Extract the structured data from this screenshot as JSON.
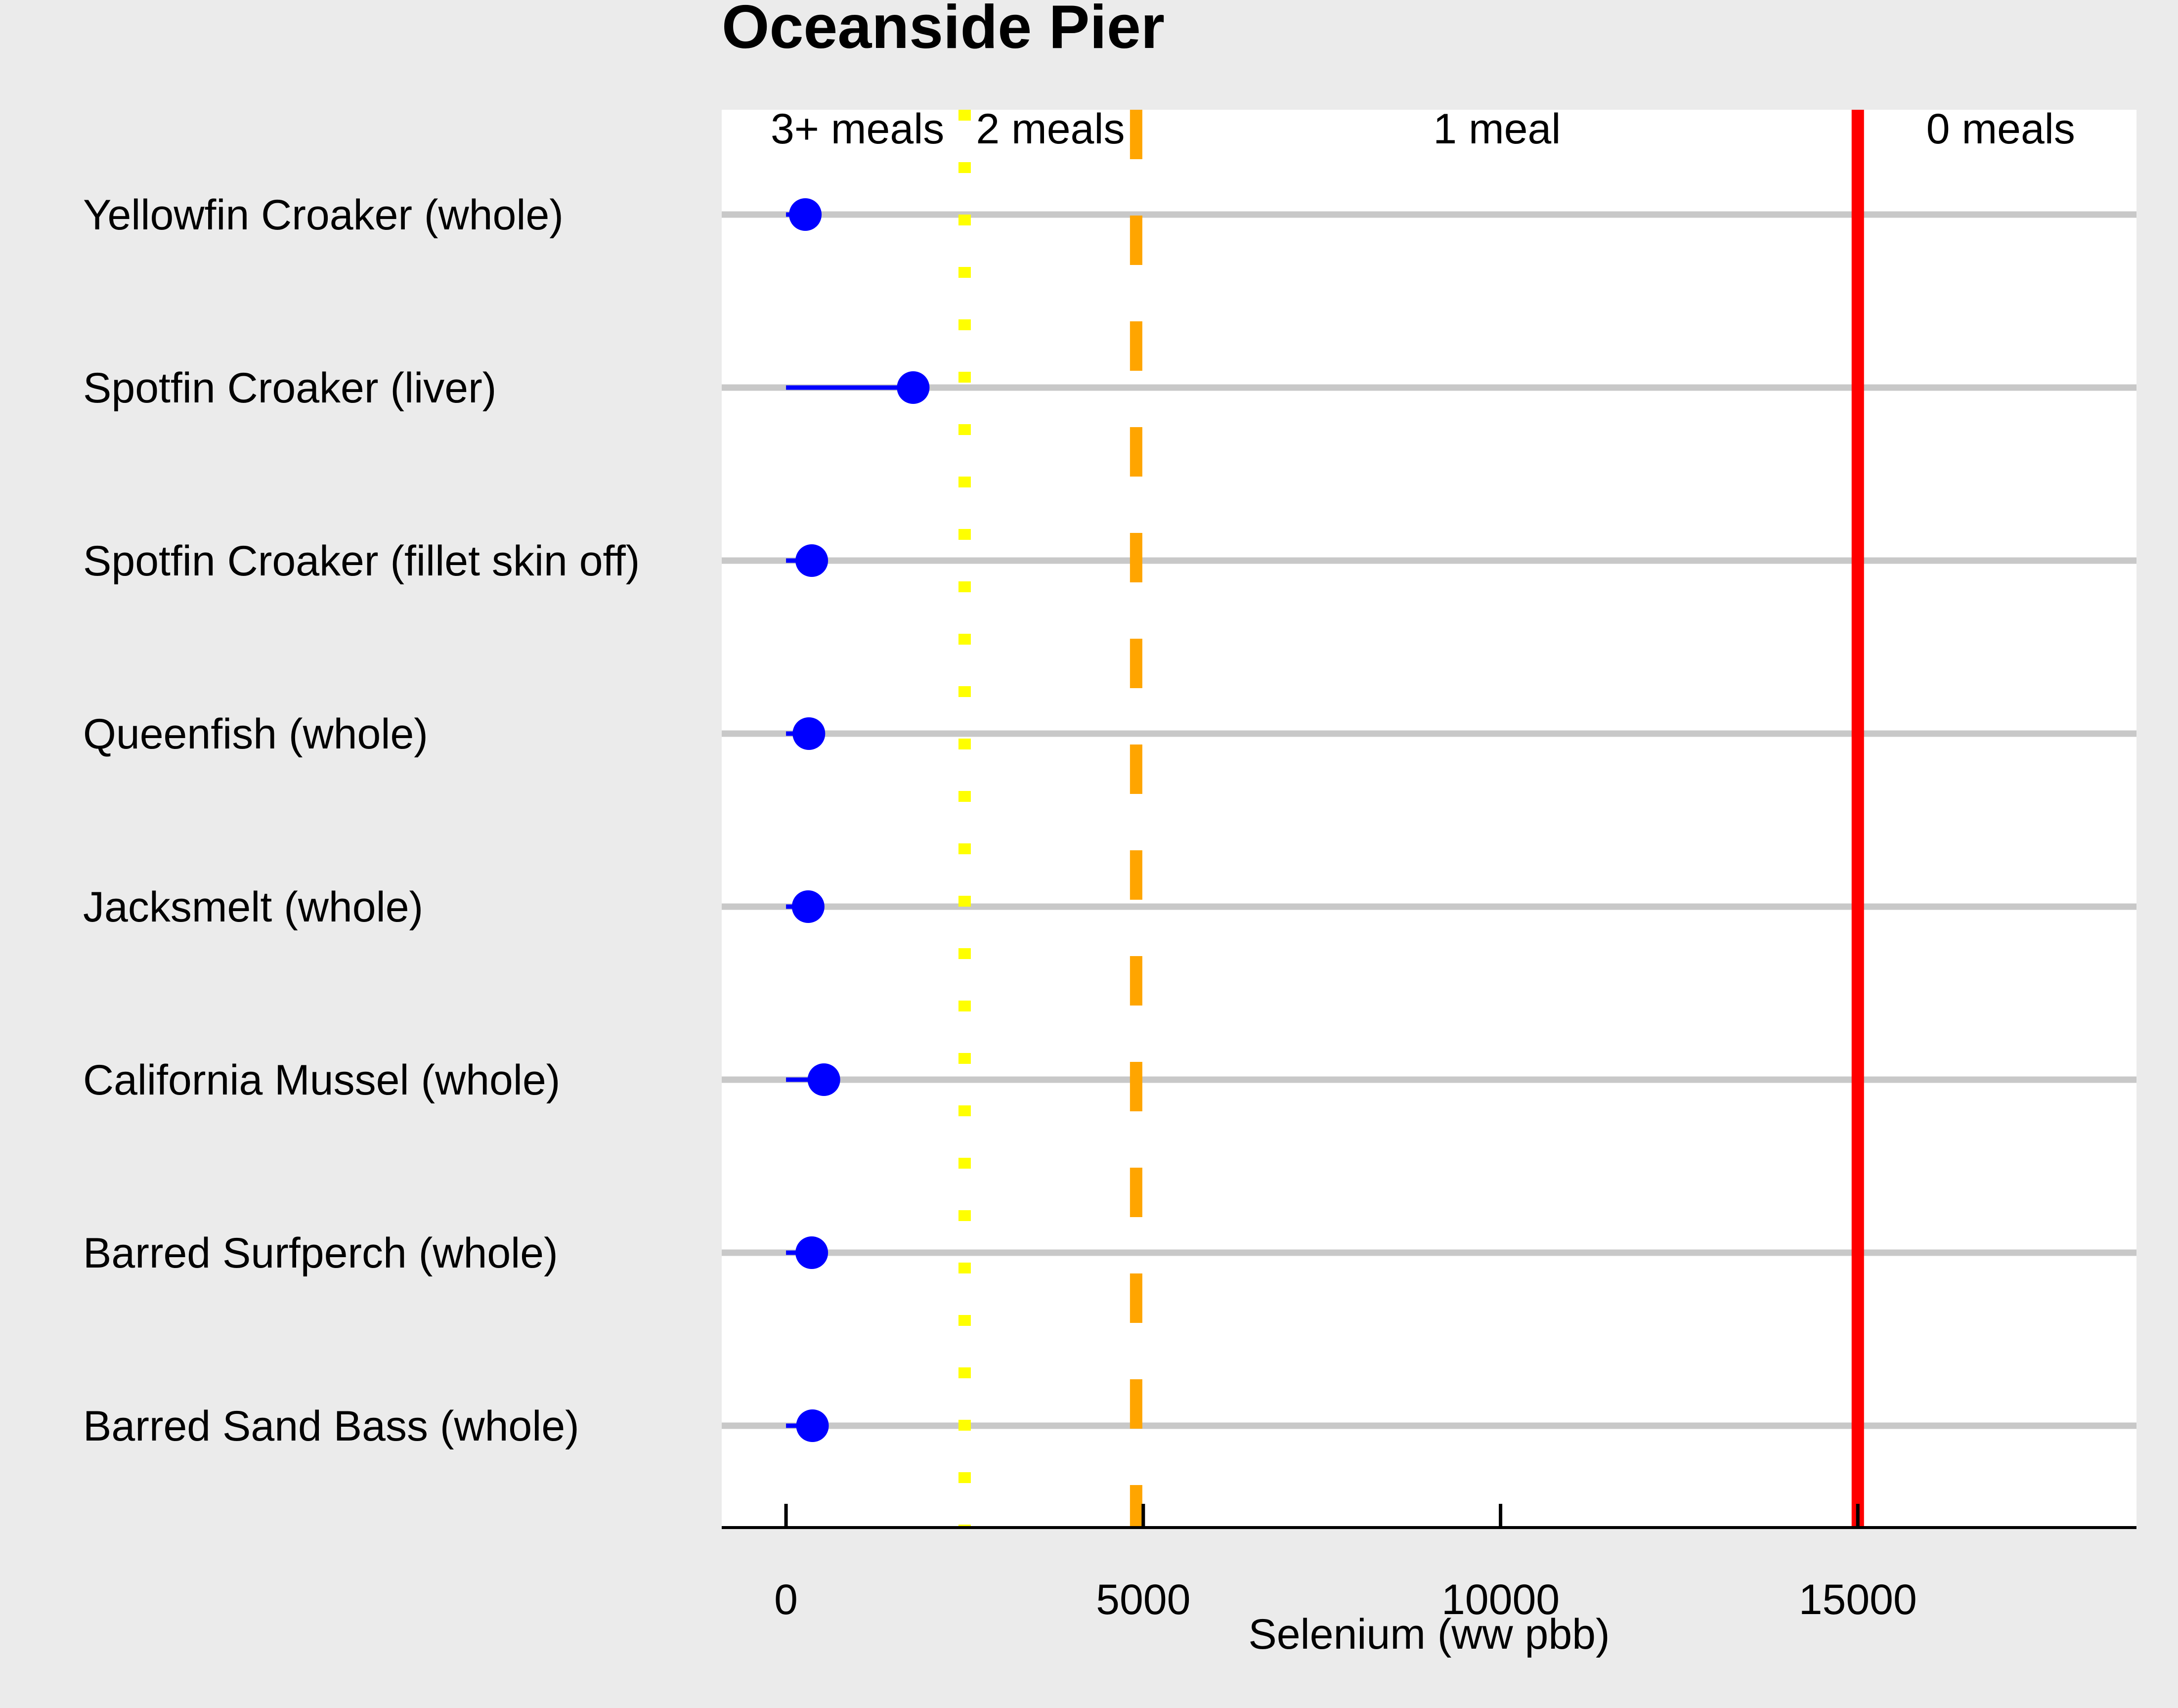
{
  "chart_data": {
    "type": "scatter",
    "title": "Oceanside Pier",
    "xlabel": "Selenium (ww pbb)",
    "ylabel": "",
    "xlim": [
      -900,
      18900
    ],
    "x_ticks": [
      0,
      5000,
      10000,
      15000
    ],
    "x_tick_labels": [
      "0",
      "5000",
      "10000",
      "15000"
    ],
    "grid": "horizontal",
    "categories": [
      "Yellowfin Croaker (whole)",
      "Spotfin Croaker (liver)",
      "Spotfin Croaker (fillet skin off)",
      "Queenfish (whole)",
      "Jacksmelt (whole)",
      "California Mussel (whole)",
      "Barred Surfperch (whole)",
      "Barred Sand Bass (whole)"
    ],
    "series": [
      {
        "values": [
          270,
          1780,
          360,
          320,
          310,
          530,
          360,
          370
        ],
        "range_low": [
          0,
          0,
          0,
          0,
          0,
          0,
          0,
          0
        ],
        "color": "#0000ff"
      }
    ],
    "thresholds": [
      {
        "value": 2500,
        "color": "#ffff00",
        "style": "dotted"
      },
      {
        "value": 4900,
        "color": "#ffa500",
        "style": "dashed"
      },
      {
        "value": 15000,
        "color": "#ff0000",
        "style": "solid"
      }
    ],
    "zone_labels": [
      {
        "text": "3+ meals",
        "center": 1000
      },
      {
        "text": "2 meals",
        "center": 3700
      },
      {
        "text": "1 meal",
        "center": 9950
      },
      {
        "text": "0 meals",
        "center": 17000
      }
    ],
    "colors": {
      "background": "#ebebeb",
      "panel": "#ffffff",
      "gridline": "#c8c8c8",
      "point": "#0000ff"
    }
  }
}
